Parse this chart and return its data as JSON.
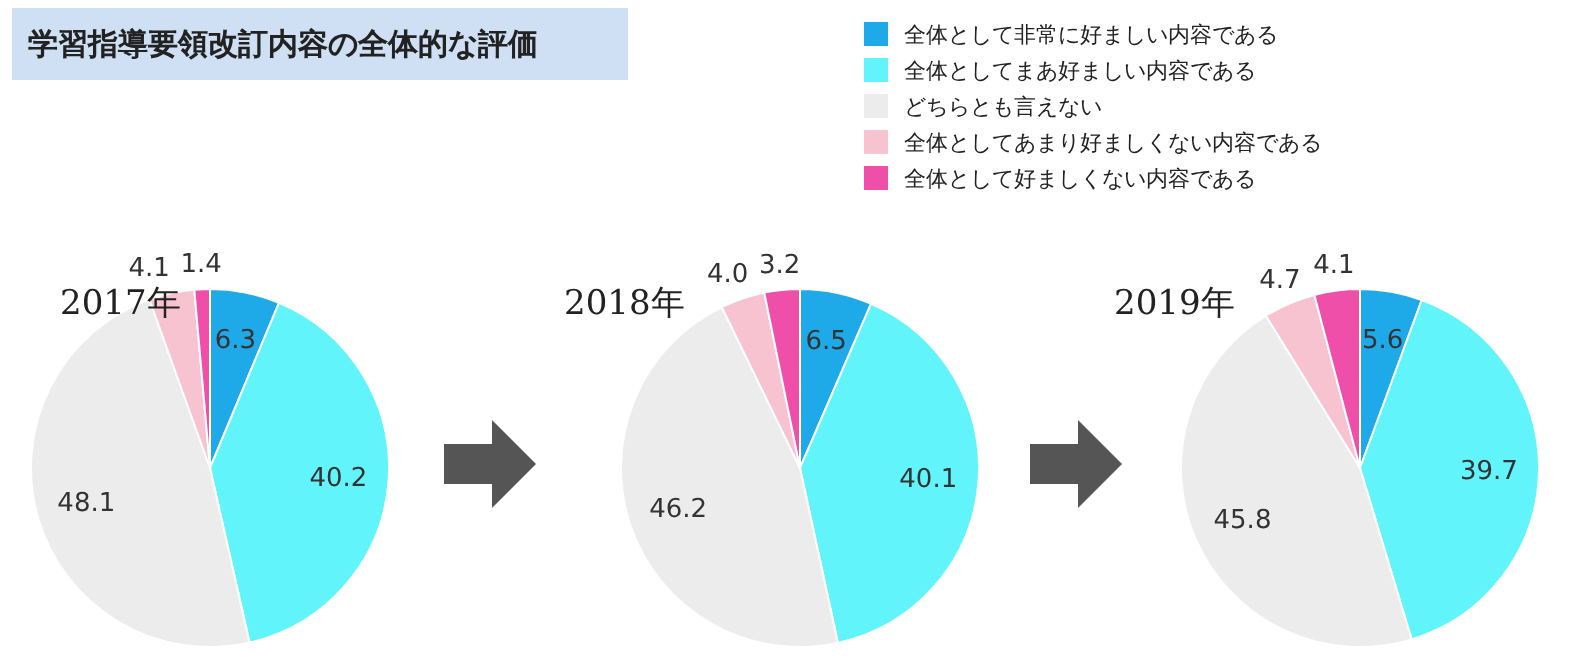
{
  "chart_data": [
    {
      "type": "pie",
      "title": "学習指導要領改訂内容の全体的な評価",
      "subtitle": "2017年",
      "legend": "top right",
      "categories": [
        "全体として非常に好ましい内容である",
        "全体としてまあ好ましい内容である",
        "どちらとも言えない",
        "全体としてあまり好ましくない内容である",
        "全体として好ましくない内容である"
      ],
      "values": [
        6.3,
        40.2,
        48.1,
        4.1,
        1.4
      ],
      "colors": [
        "#1ea9e8",
        "#62f4fb",
        "#ececec",
        "#f8c3d0",
        "#ef4fa8"
      ],
      "data_labels": true
    },
    {
      "type": "pie",
      "subtitle": "2018年",
      "categories": [
        null,
        null,
        null,
        null,
        null
      ],
      "values": [
        6.5,
        40.1,
        46.2,
        4.0,
        3.2
      ],
      "colors": [
        "#1ea9e8",
        "#62f4fb",
        "#ececec",
        "#f8c3d0",
        "#ef4fa8"
      ],
      "value_labels": [
        "6.5",
        "40.1",
        "46.2",
        "4.0",
        "3.2"
      ]
    },
    {
      "type": "pie",
      "subtitle": "2019年",
      "categories": [
        null,
        null,
        null,
        null,
        null
      ],
      "values": [
        5.6,
        39.7,
        45.8,
        4.7,
        4.1
      ],
      "colors": [
        "#1ea9e8",
        "#62f4fb",
        "#ececec",
        "#f8c3d0",
        "#ef4fa8"
      ],
      "data_labels": true
    }
  ]
}
